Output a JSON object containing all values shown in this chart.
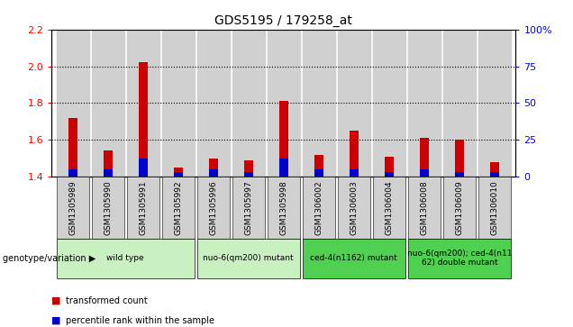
{
  "title": "GDS5195 / 179258_at",
  "samples": [
    "GSM1305989",
    "GSM1305990",
    "GSM1305991",
    "GSM1305992",
    "GSM1305996",
    "GSM1305997",
    "GSM1305998",
    "GSM1306002",
    "GSM1306003",
    "GSM1306004",
    "GSM1306008",
    "GSM1306009",
    "GSM1306010"
  ],
  "transformed_count": [
    1.72,
    1.54,
    2.02,
    1.45,
    1.5,
    1.49,
    1.81,
    1.52,
    1.65,
    1.51,
    1.61,
    1.6,
    1.48
  ],
  "percentile_rank": [
    5,
    5,
    12,
    3,
    5,
    3,
    12,
    5,
    5,
    3,
    5,
    3,
    3
  ],
  "ylim_left": [
    1.4,
    2.2
  ],
  "ylim_right": [
    0,
    100
  ],
  "yticks_left": [
    1.4,
    1.6,
    1.8,
    2.0,
    2.2
  ],
  "yticks_right": [
    0,
    25,
    50,
    75,
    100
  ],
  "groups": [
    {
      "label": "wild type",
      "start": 0,
      "end": 3,
      "color": "#c8f0c0"
    },
    {
      "label": "nuo-6(qm200) mutant",
      "start": 4,
      "end": 6,
      "color": "#c8f0c0"
    },
    {
      "label": "ced-4(n1162) mutant",
      "start": 7,
      "end": 9,
      "color": "#50d050"
    },
    {
      "label": "nuo-6(qm200); ced-4(n11\n62) double mutant",
      "start": 10,
      "end": 12,
      "color": "#50d050"
    }
  ],
  "bar_color_red": "#cc0000",
  "bar_color_blue": "#0000cc",
  "base": 1.4,
  "tick_label_bg": "#d0d0d0",
  "legend_red": "transformed count",
  "legend_blue": "percentile rank within the sample",
  "genotype_label": "genotype/variation"
}
